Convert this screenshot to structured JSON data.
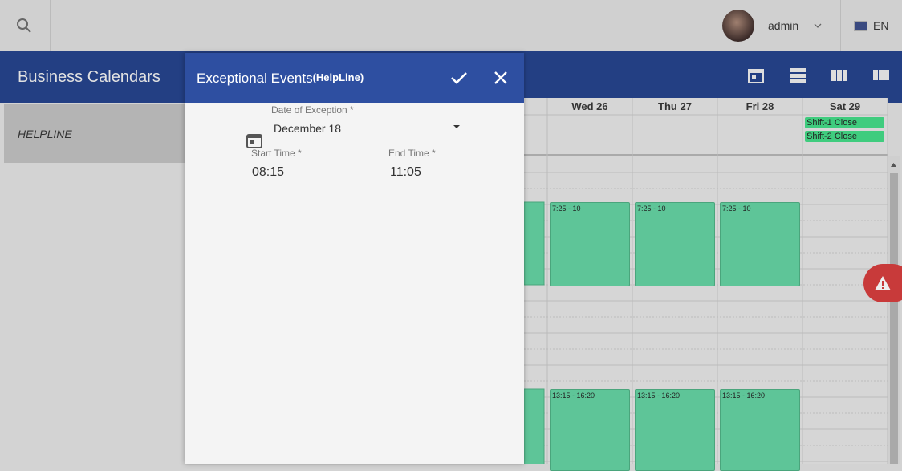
{
  "top_bar": {
    "user": "admin",
    "language": "EN"
  },
  "header": {
    "title": "Business Calendars"
  },
  "sidebar": {
    "calendars": [
      "HELPLINE"
    ]
  },
  "calendar": {
    "columns": [
      {
        "label": "Wed 26",
        "events": [
          "7:25 - 10",
          "13:15 - 16:20"
        ]
      },
      {
        "label": "Thu 27",
        "events": [
          "7:25 - 10",
          "13:15 - 16:20"
        ]
      },
      {
        "label": "Fri 28",
        "events": [
          "7:25 - 10",
          "13:15 - 16:20"
        ]
      },
      {
        "label": "Sat 29",
        "all_day": [
          "Shift-1 Close",
          "Shift-2 Close"
        ]
      }
    ]
  },
  "dialog": {
    "title": "Exceptional Events",
    "subtitle": "(HelpLine)",
    "date_label": "Date of Exception *",
    "date_value": "December 18",
    "start_label": "Start Time *",
    "start_value": "08:15",
    "end_label": "End Time *",
    "end_value": "11:05"
  }
}
